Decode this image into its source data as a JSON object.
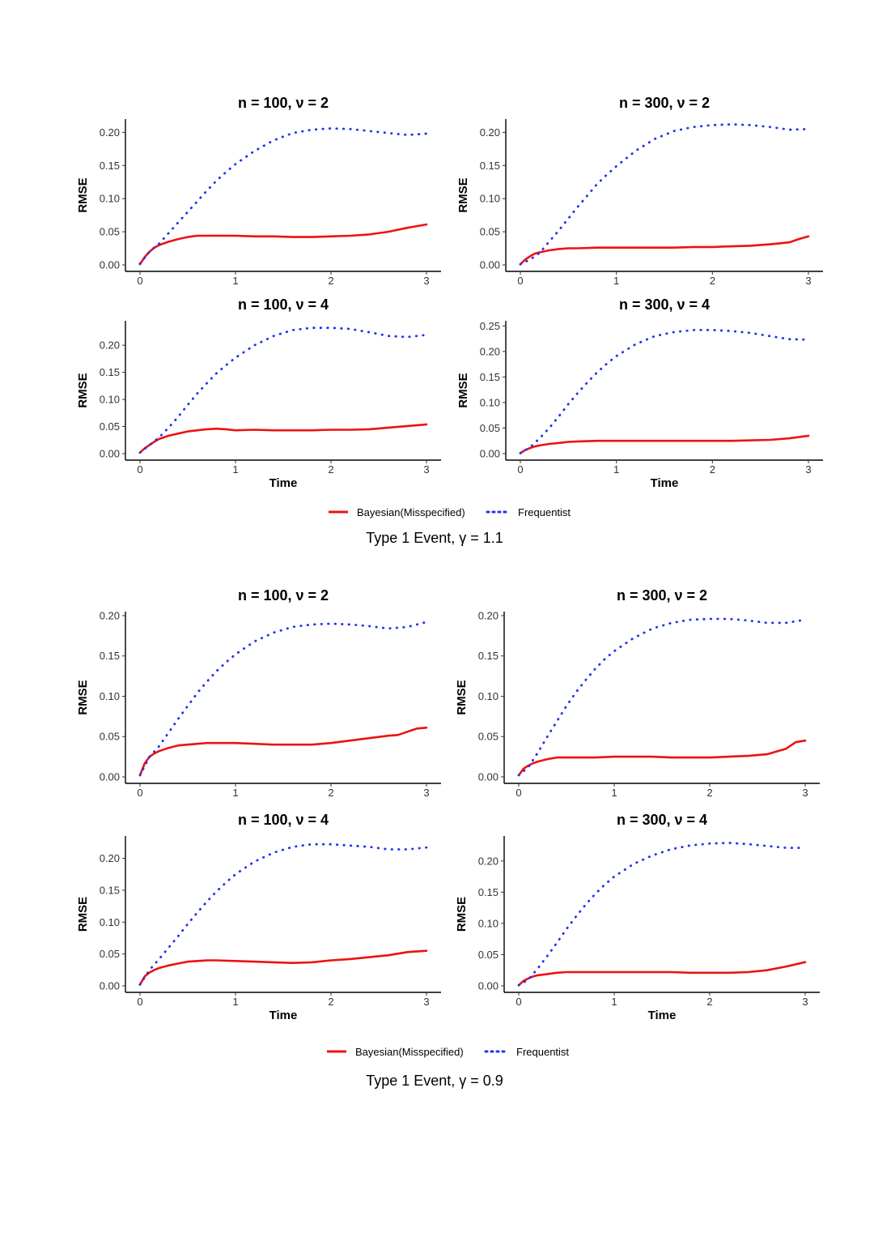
{
  "colors": {
    "bayes": "#ee1111",
    "freq": "#2233ee",
    "axis": "#000000"
  },
  "figures": [
    {
      "caption": "Type 1 Event,  γ = 1.1",
      "legend": {
        "bayes": "Bayesian(Misspecified)",
        "freq": "Frequentist"
      },
      "xlabel": "Time",
      "ylabel": "RMSE"
    },
    {
      "caption": "Type 1 Event,  γ = 0.9",
      "legend": {
        "bayes": "Bayesian(Misspecified)",
        "freq": "Frequentist"
      },
      "xlabel": "Time",
      "ylabel": "RMSE"
    }
  ],
  "chart_data": [
    {
      "type": "line",
      "title": "n = 100, ν = 2",
      "xlabel": "",
      "ylabel": "RMSE",
      "xlim": [
        0,
        3
      ],
      "ylim": [
        0,
        0.22
      ],
      "xticks": [
        "0",
        "1",
        "2",
        "3"
      ],
      "yticks": [
        "0.00",
        "0.05",
        "0.10",
        "0.15",
        "0.20"
      ],
      "series": [
        {
          "name": "Bayesian(Misspecified)",
          "x": [
            0,
            0.05,
            0.1,
            0.15,
            0.2,
            0.3,
            0.4,
            0.5,
            0.6,
            0.7,
            0.8,
            0.9,
            1.0,
            1.2,
            1.4,
            1.6,
            1.8,
            2.0,
            2.2,
            2.4,
            2.6,
            2.8,
            3.0
          ],
          "values": [
            0.001,
            0.012,
            0.02,
            0.026,
            0.03,
            0.035,
            0.039,
            0.042,
            0.044,
            0.044,
            0.044,
            0.044,
            0.044,
            0.043,
            0.043,
            0.042,
            0.042,
            0.043,
            0.044,
            0.046,
            0.05,
            0.056,
            0.061
          ]
        },
        {
          "name": "Frequentist",
          "x": [
            0,
            0.1,
            0.2,
            0.3,
            0.4,
            0.5,
            0.6,
            0.7,
            0.8,
            0.9,
            1.0,
            1.2,
            1.4,
            1.6,
            1.8,
            2.0,
            2.2,
            2.4,
            2.6,
            2.8,
            3.0
          ],
          "values": [
            0.002,
            0.02,
            0.032,
            0.048,
            0.064,
            0.08,
            0.096,
            0.112,
            0.127,
            0.14,
            0.152,
            0.172,
            0.188,
            0.199,
            0.204,
            0.206,
            0.205,
            0.202,
            0.199,
            0.196,
            0.198
          ]
        }
      ]
    },
    {
      "type": "line",
      "title": "n = 300, ν = 2",
      "xlabel": "",
      "ylabel": "RMSE",
      "xlim": [
        0,
        3
      ],
      "ylim": [
        0,
        0.22
      ],
      "xticks": [
        "0",
        "1",
        "2",
        "3"
      ],
      "yticks": [
        "0.00",
        "0.05",
        "0.10",
        "0.15",
        "0.20"
      ],
      "series": [
        {
          "name": "Bayesian(Misspecified)",
          "x": [
            0,
            0.05,
            0.1,
            0.15,
            0.2,
            0.3,
            0.4,
            0.5,
            0.6,
            0.8,
            1.0,
            1.2,
            1.4,
            1.6,
            1.8,
            2.0,
            2.2,
            2.4,
            2.6,
            2.8,
            2.9,
            3.0
          ],
          "values": [
            0.001,
            0.008,
            0.013,
            0.017,
            0.019,
            0.022,
            0.024,
            0.025,
            0.025,
            0.026,
            0.026,
            0.026,
            0.026,
            0.026,
            0.027,
            0.027,
            0.028,
            0.029,
            0.031,
            0.034,
            0.039,
            0.043
          ]
        },
        {
          "name": "Frequentist",
          "x": [
            0,
            0.1,
            0.2,
            0.3,
            0.4,
            0.5,
            0.6,
            0.7,
            0.8,
            0.9,
            1.0,
            1.2,
            1.4,
            1.6,
            1.8,
            2.0,
            2.2,
            2.4,
            2.6,
            2.8,
            3.0
          ],
          "values": [
            0.001,
            0.008,
            0.018,
            0.035,
            0.052,
            0.07,
            0.088,
            0.105,
            0.122,
            0.136,
            0.149,
            0.172,
            0.19,
            0.202,
            0.208,
            0.211,
            0.212,
            0.211,
            0.208,
            0.204,
            0.205
          ]
        }
      ]
    },
    {
      "type": "line",
      "title": "n = 100, ν = 4",
      "xlabel": "Time",
      "ylabel": "RMSE",
      "xlim": [
        0,
        3
      ],
      "ylim": [
        0,
        0.245
      ],
      "xticks": [
        "0",
        "1",
        "2",
        "3"
      ],
      "yticks": [
        "0.00",
        "0.05",
        "0.10",
        "0.15",
        "0.20"
      ],
      "series": [
        {
          "name": "Bayesian(Misspecified)",
          "x": [
            0,
            0.05,
            0.1,
            0.15,
            0.2,
            0.3,
            0.4,
            0.5,
            0.6,
            0.7,
            0.8,
            0.9,
            1.0,
            1.2,
            1.4,
            1.6,
            1.8,
            2.0,
            2.2,
            2.4,
            2.6,
            2.8,
            3.0
          ],
          "values": [
            0.002,
            0.01,
            0.016,
            0.022,
            0.027,
            0.033,
            0.037,
            0.041,
            0.043,
            0.045,
            0.046,
            0.045,
            0.043,
            0.044,
            0.043,
            0.043,
            0.043,
            0.044,
            0.044,
            0.045,
            0.048,
            0.051,
            0.054
          ]
        },
        {
          "name": "Frequentist",
          "x": [
            0,
            0.1,
            0.2,
            0.3,
            0.4,
            0.5,
            0.6,
            0.7,
            0.8,
            0.9,
            1.0,
            1.2,
            1.4,
            1.6,
            1.8,
            2.0,
            2.2,
            2.4,
            2.6,
            2.8,
            3.0
          ],
          "values": [
            0.002,
            0.016,
            0.03,
            0.048,
            0.068,
            0.09,
            0.111,
            0.13,
            0.148,
            0.163,
            0.177,
            0.2,
            0.217,
            0.228,
            0.232,
            0.232,
            0.23,
            0.224,
            0.217,
            0.215,
            0.219
          ]
        }
      ]
    },
    {
      "type": "line",
      "title": "n = 300, ν = 4",
      "xlabel": "Time",
      "ylabel": "RMSE",
      "xlim": [
        0,
        3
      ],
      "ylim": [
        0,
        0.26
      ],
      "xticks": [
        "0",
        "1",
        "2",
        "3"
      ],
      "yticks": [
        "0.00",
        "0.05",
        "0.10",
        "0.15",
        "0.20",
        "0.25"
      ],
      "series": [
        {
          "name": "Bayesian(Misspecified)",
          "x": [
            0,
            0.05,
            0.1,
            0.15,
            0.2,
            0.3,
            0.4,
            0.5,
            0.6,
            0.8,
            1.0,
            1.2,
            1.4,
            1.6,
            1.8,
            2.0,
            2.2,
            2.4,
            2.6,
            2.8,
            3.0
          ],
          "values": [
            0.001,
            0.007,
            0.011,
            0.014,
            0.016,
            0.019,
            0.021,
            0.023,
            0.024,
            0.025,
            0.025,
            0.025,
            0.025,
            0.025,
            0.025,
            0.025,
            0.025,
            0.026,
            0.027,
            0.03,
            0.035
          ]
        },
        {
          "name": "Frequentist",
          "x": [
            0,
            0.1,
            0.2,
            0.3,
            0.4,
            0.5,
            0.6,
            0.7,
            0.8,
            0.9,
            1.0,
            1.2,
            1.4,
            1.6,
            1.8,
            2.0,
            2.2,
            2.4,
            2.6,
            2.8,
            3.0
          ],
          "values": [
            0.001,
            0.012,
            0.03,
            0.05,
            0.073,
            0.097,
            0.119,
            0.14,
            0.159,
            0.176,
            0.191,
            0.214,
            0.23,
            0.238,
            0.242,
            0.242,
            0.24,
            0.236,
            0.23,
            0.224,
            0.223
          ]
        }
      ]
    },
    {
      "type": "line",
      "title": "n = 100, ν = 2",
      "xlabel": "",
      "ylabel": "RMSE",
      "xlim": [
        0,
        3
      ],
      "ylim": [
        0,
        0.205
      ],
      "xticks": [
        "0",
        "1",
        "2",
        "3"
      ],
      "yticks": [
        "0.00",
        "0.05",
        "0.10",
        "0.15",
        "0.20"
      ],
      "series": [
        {
          "name": "Bayesian(Misspecified)",
          "x": [
            0,
            0.05,
            0.1,
            0.15,
            0.2,
            0.3,
            0.4,
            0.5,
            0.6,
            0.7,
            0.8,
            1.0,
            1.2,
            1.4,
            1.6,
            1.8,
            2.0,
            2.2,
            2.4,
            2.6,
            2.7,
            2.8,
            2.9,
            3.0
          ],
          "values": [
            0.002,
            0.017,
            0.025,
            0.029,
            0.032,
            0.036,
            0.039,
            0.04,
            0.041,
            0.042,
            0.042,
            0.042,
            0.041,
            0.04,
            0.04,
            0.04,
            0.042,
            0.045,
            0.048,
            0.051,
            0.052,
            0.056,
            0.06,
            0.061
          ]
        },
        {
          "name": "Frequentist",
          "x": [
            0,
            0.1,
            0.2,
            0.3,
            0.4,
            0.5,
            0.6,
            0.7,
            0.8,
            0.9,
            1.0,
            1.2,
            1.4,
            1.6,
            1.8,
            2.0,
            2.2,
            2.4,
            2.6,
            2.8,
            3.0
          ],
          "values": [
            0.002,
            0.025,
            0.038,
            0.055,
            0.072,
            0.088,
            0.104,
            0.118,
            0.131,
            0.142,
            0.152,
            0.168,
            0.179,
            0.186,
            0.189,
            0.19,
            0.189,
            0.187,
            0.184,
            0.186,
            0.192
          ]
        }
      ]
    },
    {
      "type": "line",
      "title": "n = 300, ν = 2",
      "xlabel": "",
      "ylabel": "RMSE",
      "xlim": [
        0,
        3
      ],
      "ylim": [
        0,
        0.205
      ],
      "xticks": [
        "0",
        "1",
        "2",
        "3"
      ],
      "yticks": [
        "0.00",
        "0.05",
        "0.10",
        "0.15",
        "0.20"
      ],
      "series": [
        {
          "name": "Bayesian(Misspecified)",
          "x": [
            0,
            0.05,
            0.1,
            0.15,
            0.2,
            0.3,
            0.4,
            0.5,
            0.6,
            0.8,
            1.0,
            1.2,
            1.4,
            1.6,
            1.8,
            2.0,
            2.2,
            2.4,
            2.6,
            2.8,
            2.9,
            3.0
          ],
          "values": [
            0.002,
            0.01,
            0.014,
            0.017,
            0.019,
            0.022,
            0.024,
            0.024,
            0.024,
            0.024,
            0.025,
            0.025,
            0.025,
            0.024,
            0.024,
            0.024,
            0.025,
            0.026,
            0.028,
            0.035,
            0.043,
            0.045
          ]
        },
        {
          "name": "Frequentist",
          "x": [
            0,
            0.1,
            0.2,
            0.3,
            0.4,
            0.5,
            0.6,
            0.7,
            0.8,
            0.9,
            1.0,
            1.2,
            1.4,
            1.6,
            1.8,
            2.0,
            2.2,
            2.4,
            2.6,
            2.8,
            3.0
          ],
          "values": [
            0.002,
            0.012,
            0.03,
            0.05,
            0.069,
            0.088,
            0.105,
            0.12,
            0.134,
            0.146,
            0.156,
            0.172,
            0.184,
            0.191,
            0.195,
            0.196,
            0.196,
            0.194,
            0.191,
            0.191,
            0.195
          ]
        }
      ]
    },
    {
      "type": "line",
      "title": "n = 100, ν = 4",
      "xlabel": "Time",
      "ylabel": "RMSE",
      "xlim": [
        0,
        3
      ],
      "ylim": [
        0,
        0.235
      ],
      "xticks": [
        "0",
        "1",
        "2",
        "3"
      ],
      "yticks": [
        "0.00",
        "0.05",
        "0.10",
        "0.15",
        "0.20"
      ],
      "series": [
        {
          "name": "Bayesian(Misspecified)",
          "x": [
            0,
            0.05,
            0.1,
            0.15,
            0.2,
            0.3,
            0.4,
            0.5,
            0.6,
            0.7,
            0.8,
            1.0,
            1.2,
            1.4,
            1.6,
            1.8,
            2.0,
            2.2,
            2.4,
            2.6,
            2.8,
            3.0
          ],
          "values": [
            0.002,
            0.015,
            0.021,
            0.025,
            0.028,
            0.032,
            0.035,
            0.038,
            0.039,
            0.04,
            0.04,
            0.039,
            0.038,
            0.037,
            0.036,
            0.037,
            0.04,
            0.042,
            0.045,
            0.048,
            0.053,
            0.055
          ]
        },
        {
          "name": "Frequentist",
          "x": [
            0,
            0.1,
            0.2,
            0.3,
            0.4,
            0.5,
            0.6,
            0.7,
            0.8,
            0.9,
            1.0,
            1.2,
            1.4,
            1.6,
            1.8,
            2.0,
            2.2,
            2.4,
            2.6,
            2.8,
            3.0
          ],
          "values": [
            0.002,
            0.025,
            0.042,
            0.06,
            0.078,
            0.097,
            0.115,
            0.132,
            0.148,
            0.162,
            0.175,
            0.195,
            0.209,
            0.218,
            0.222,
            0.222,
            0.22,
            0.218,
            0.214,
            0.214,
            0.217
          ]
        }
      ]
    },
    {
      "type": "line",
      "title": "n = 300, ν = 4",
      "xlabel": "Time",
      "ylabel": "RMSE",
      "xlim": [
        0,
        3
      ],
      "ylim": [
        0,
        0.24
      ],
      "xticks": [
        "0",
        "1",
        "2",
        "3"
      ],
      "yticks": [
        "0.00",
        "0.05",
        "0.10",
        "0.15",
        "0.20"
      ],
      "series": [
        {
          "name": "Bayesian(Misspecified)",
          "x": [
            0,
            0.05,
            0.1,
            0.15,
            0.2,
            0.3,
            0.4,
            0.5,
            0.6,
            0.8,
            1.0,
            1.2,
            1.4,
            1.6,
            1.8,
            2.0,
            2.2,
            2.4,
            2.6,
            2.8,
            3.0
          ],
          "values": [
            0.001,
            0.008,
            0.012,
            0.015,
            0.017,
            0.019,
            0.021,
            0.022,
            0.022,
            0.022,
            0.022,
            0.022,
            0.022,
            0.022,
            0.021,
            0.021,
            0.021,
            0.022,
            0.025,
            0.031,
            0.038
          ]
        },
        {
          "name": "Frequentist",
          "x": [
            0,
            0.1,
            0.2,
            0.3,
            0.4,
            0.5,
            0.6,
            0.7,
            0.8,
            0.9,
            1.0,
            1.2,
            1.4,
            1.6,
            1.8,
            2.0,
            2.2,
            2.4,
            2.6,
            2.8,
            3.0
          ],
          "values": [
            0.001,
            0.01,
            0.028,
            0.048,
            0.069,
            0.091,
            0.111,
            0.13,
            0.147,
            0.162,
            0.175,
            0.195,
            0.209,
            0.219,
            0.225,
            0.228,
            0.229,
            0.227,
            0.224,
            0.221,
            0.221
          ]
        }
      ]
    }
  ]
}
